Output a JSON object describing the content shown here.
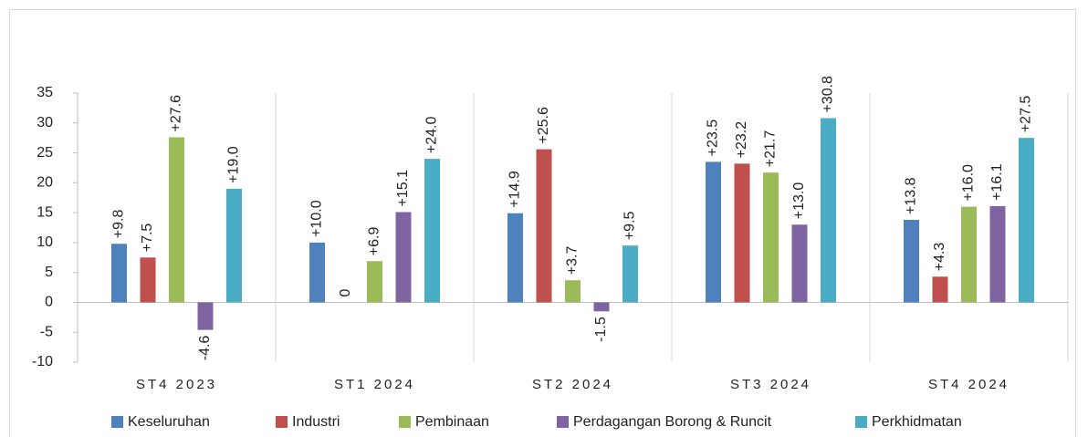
{
  "chart_data": {
    "type": "bar",
    "categories": [
      "ST4 2023",
      "ST1 2024",
      "ST2 2024",
      "ST3 2024",
      "ST4 2024"
    ],
    "series": [
      {
        "name": "Keseluruhan",
        "color": "#4f81bd",
        "values": [
          9.8,
          10.0,
          14.9,
          23.5,
          13.8
        ],
        "value_labels": [
          "+9.8",
          "+10.0",
          "+14.9",
          "+23.5",
          "+13.8"
        ]
      },
      {
        "name": "Industri",
        "color": "#c0504d",
        "values": [
          7.5,
          0,
          25.6,
          23.2,
          4.3
        ],
        "value_labels": [
          "+7.5",
          "0",
          "+25.6",
          "+23.2",
          "+4.3"
        ]
      },
      {
        "name": "Pembinaan",
        "color": "#9bbb59",
        "values": [
          27.6,
          6.9,
          3.7,
          21.7,
          16.0
        ],
        "value_labels": [
          "+27.6",
          "+6.9",
          "+3.7",
          "+21.7",
          "+16.0"
        ]
      },
      {
        "name": "Perdagangan Borong & Runcit",
        "color": "#8064a2",
        "values": [
          -4.6,
          15.1,
          -1.5,
          13.0,
          16.1
        ],
        "value_labels": [
          "-4.6",
          "+15.1",
          "-1.5",
          "+13.0",
          "+16.1"
        ]
      },
      {
        "name": "Perkhidmatan",
        "color": "#4bacc6",
        "values": [
          19.0,
          24.0,
          9.5,
          30.8,
          27.5
        ],
        "value_labels": [
          "+19.0",
          "+24.0",
          "+9.5",
          "+30.8",
          "+27.5"
        ]
      }
    ],
    "ylim": [
      -10,
      35
    ],
    "yticks": [
      -10,
      -5,
      0,
      5,
      10,
      15,
      20,
      25,
      30,
      35
    ],
    "legend": "bottom"
  }
}
